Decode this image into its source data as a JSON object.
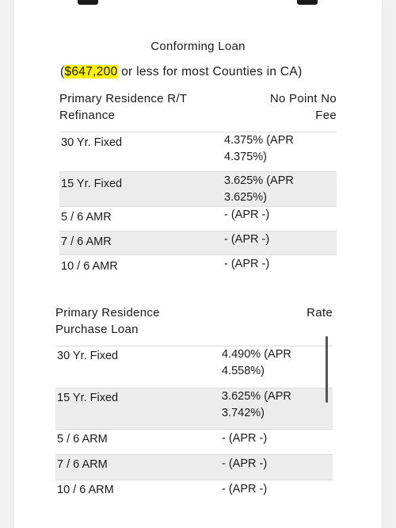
{
  "conforming": {
    "title": "Conforming Loan",
    "subtitle_open": "(",
    "subtitle_amount": "$647,200",
    "subtitle_rest": " or less for most Counties in CA)"
  },
  "table1": {
    "header_left": [
      "Primary Residence R/T",
      "Refinance"
    ],
    "header_right": [
      "No Point No",
      "Fee"
    ],
    "rows": [
      {
        "term": "30 Yr. Fixed",
        "rate": [
          "4.375% (APR",
          "4.375%)"
        ]
      },
      {
        "term": "15 Yr. Fixed",
        "rate": [
          "3.625% (APR",
          "3.625%)"
        ]
      },
      {
        "term": "5 / 6 AMR",
        "rate": [
          "- (APR -)"
        ]
      },
      {
        "term": "7 / 6 AMR",
        "rate": [
          "- (APR -)"
        ]
      },
      {
        "term": "10 / 6 AMR",
        "rate": [
          "- (APR -)"
        ]
      }
    ]
  },
  "table2": {
    "header_left": [
      "Primary Residence",
      "Purchase Loan"
    ],
    "header_right": [
      "Rate"
    ],
    "rows": [
      {
        "term": "30 Yr. Fixed",
        "rate": [
          "4.490% (APR",
          "4.558%)"
        ]
      },
      {
        "term": "15 Yr. Fixed",
        "rate": [
          "3.625% (APR",
          "3.742%)"
        ]
      },
      {
        "term": "5 / 6 ARM",
        "rate": [
          "- (APR -)"
        ]
      },
      {
        "term": "7 / 6 ARM",
        "rate": [
          "- (APR -)"
        ]
      },
      {
        "term": "10 / 6 ARM",
        "rate": [
          "- (APR -)"
        ]
      }
    ]
  },
  "colors": {
    "highlight": "#fff200",
    "row_shade": "#ececec"
  }
}
